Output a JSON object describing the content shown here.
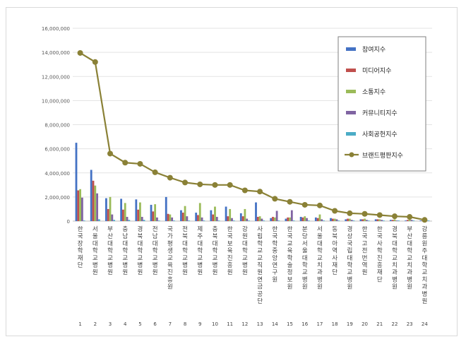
{
  "chart_data": {
    "type": "bar",
    "title": "",
    "xlabel": "",
    "ylabel": "",
    "ylim": [
      0,
      16000000
    ],
    "yticks": [
      "0",
      "2,000,000",
      "4,000,000",
      "6,000,000",
      "8,000,000",
      "10,000,000",
      "12,000,000",
      "14,000,000",
      "16,000,000"
    ],
    "grid": true,
    "legend_position": "right",
    "categories": [
      "한국장학재단",
      "서울대학교병원",
      "부산대학교병원",
      "충남대학교병원",
      "경북대학교병원",
      "전남대학교병원",
      "국가평생교육진흥원",
      "전북대학교병원",
      "제주대학교병원",
      "충북대학교병원",
      "한국보육진흥원",
      "강원대학교병원",
      "사립학교교직원연금공단",
      "한국학중앙연구원",
      "한국교육학술정보원",
      "분당서울대학교병원",
      "서울대학교치과병원",
      "동북아역사재단",
      "경상국립대학교병원",
      "한국고전번역원",
      "한국사학진흥재단",
      "경북대학교치과병원",
      "부산대학교치과병원",
      "강릉원주대학교치과병원"
    ],
    "category_numbers": [
      "1",
      "2",
      "3",
      "4",
      "5",
      "6",
      "7",
      "8",
      "9",
      "10",
      "11",
      "12",
      "13",
      "14",
      "15",
      "16",
      "17",
      "18",
      "19",
      "20",
      "21",
      "22",
      "23",
      "24"
    ],
    "series": [
      {
        "name": "참여지수",
        "kind": "bar",
        "color": "#4472c4",
        "values": [
          6500000,
          4250000,
          1900000,
          1850000,
          1800000,
          1350000,
          2000000,
          900000,
          700000,
          900000,
          1200000,
          650000,
          1550000,
          250000,
          200000,
          350000,
          300000,
          250000,
          150000,
          150000,
          150000,
          100000,
          50000,
          50000
        ]
      },
      {
        "name": "미디어지수",
        "kind": "bar",
        "color": "#c0504d",
        "values": [
          2550000,
          3350000,
          1000000,
          950000,
          950000,
          800000,
          600000,
          700000,
          500000,
          550000,
          400000,
          400000,
          350000,
          350000,
          300000,
          300000,
          250000,
          200000,
          200000,
          150000,
          150000,
          100000,
          100000,
          50000
        ]
      },
      {
        "name": "소통지수",
        "kind": "bar",
        "color": "#9bbb59",
        "values": [
          2650000,
          2950000,
          2000000,
          1500000,
          1550000,
          1400000,
          550000,
          1250000,
          1500000,
          1200000,
          1000000,
          1000000,
          400000,
          300000,
          300000,
          400000,
          550000,
          200000,
          200000,
          200000,
          150000,
          150000,
          150000,
          50000
        ]
      },
      {
        "name": "커뮤니티지수",
        "kind": "bar",
        "color": "#8064a2",
        "values": [
          1950000,
          2300000,
          550000,
          350000,
          350000,
          300000,
          300000,
          400000,
          300000,
          350000,
          250000,
          200000,
          200000,
          850000,
          900000,
          250000,
          150000,
          150000,
          100000,
          100000,
          100000,
          50000,
          100000,
          50000
        ]
      },
      {
        "name": "사회공헌지수",
        "kind": "bar",
        "color": "#4bacc6",
        "values": [
          50000,
          150000,
          100000,
          100000,
          100000,
          50000,
          50000,
          50000,
          50000,
          50000,
          50000,
          50000,
          50000,
          50000,
          50000,
          50000,
          50000,
          50000,
          50000,
          50000,
          50000,
          50000,
          50000,
          50000
        ]
      },
      {
        "name": "브랜드평판지수",
        "kind": "line",
        "color": "#8a8136",
        "values": [
          13950000,
          13200000,
          5600000,
          4850000,
          4750000,
          4050000,
          3600000,
          3200000,
          3050000,
          3000000,
          3000000,
          2550000,
          2450000,
          1850000,
          1600000,
          1350000,
          1300000,
          850000,
          650000,
          600000,
          500000,
          400000,
          350000,
          100000
        ]
      }
    ]
  }
}
